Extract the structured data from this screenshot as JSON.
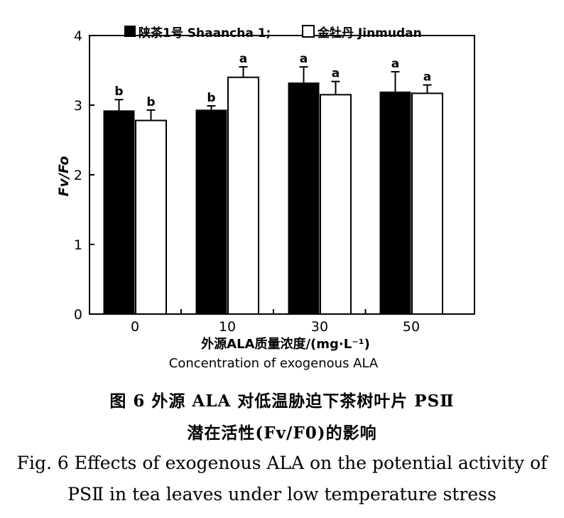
{
  "chart_data": {
    "type": "bar",
    "title": "",
    "categories": [
      "0",
      "10",
      "30",
      "50"
    ],
    "series": [
      {
        "name": "陕茶1号 Shaancha 1;",
        "color": "#000000",
        "values": [
          2.92,
          2.93,
          3.32,
          3.19
        ],
        "errors": [
          0.16,
          0.06,
          0.23,
          0.29
        ],
        "labels": [
          "b",
          "b",
          "a",
          "a"
        ]
      },
      {
        "name": "金牡丹 Jinmudan",
        "color": "#ffffff",
        "values": [
          2.78,
          3.4,
          3.15,
          3.17
        ],
        "errors": [
          0.15,
          0.15,
          0.19,
          0.12
        ],
        "labels": [
          "b",
          "a",
          "a",
          "a"
        ]
      }
    ],
    "xlabel": "外源ALA质量浓度/(mg·L⁻¹)",
    "xlabel_en": "Concentration of exogenous ALA",
    "ylabel": "Fv/Fo",
    "ylim": [
      0,
      4
    ],
    "yticks": [
      "0",
      "1",
      "2",
      "3",
      "4"
    ],
    "grid": false,
    "legend_position": "top"
  },
  "caption": {
    "cn_line1": "图 6   外源 ALA 对低温胁迫下茶树叶片 PSⅡ",
    "cn_line2": "潜在活性(Fv/F0)的影响",
    "en_line1": "Fig. 6    Effects of exogenous ALA on the potential activity of",
    "en_line2": "PSⅡ  in tea leaves under low temperature stress"
  }
}
